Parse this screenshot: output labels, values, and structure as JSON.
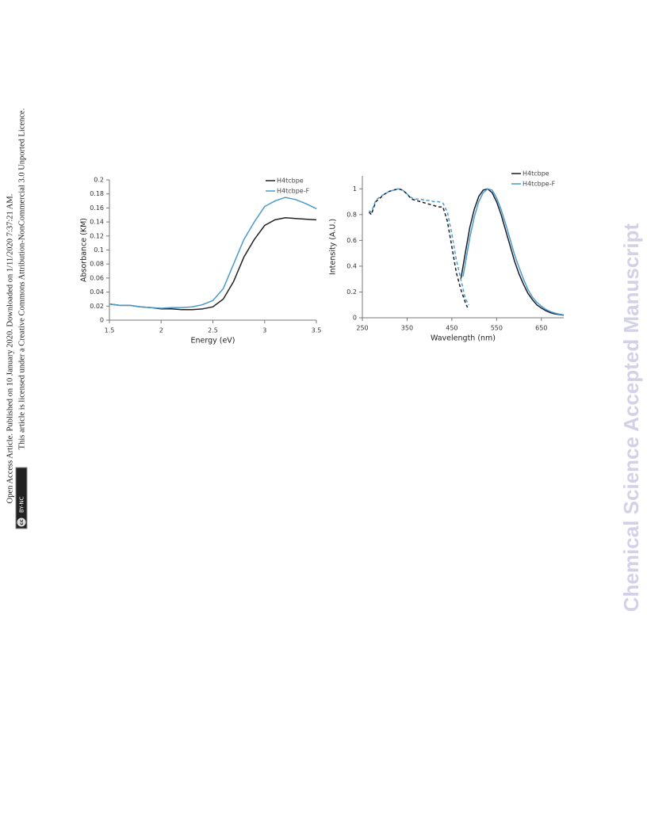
{
  "side_note": {
    "line1": "Open Access Article. Published on 10 January 2020. Downloaded on 1/11/2020 7:37:21 AM.",
    "line2": "This article is licensed under a Creative Commons Attribution-NonCommercial 3.0 Unported Licence.",
    "badge_icon": "cc",
    "badge_text": "BY-NC"
  },
  "watermark": "Chemical Science Accepted Manuscript",
  "chart_data": [
    {
      "type": "line",
      "xlabel": "Energy (eV)",
      "ylabel": "Absorbance (KM)",
      "xlim": [
        1.5,
        3.5
      ],
      "xticks": [
        1.5,
        2,
        2.5,
        3,
        3.5
      ],
      "ylim": [
        0,
        0.2
      ],
      "yticks": [
        0,
        0.02,
        0.04,
        0.06,
        0.08,
        0.1,
        0.12,
        0.14,
        0.16,
        0.18,
        0.2
      ],
      "legend": "upper right",
      "x": [
        1.5,
        1.6,
        1.7,
        1.8,
        1.9,
        2.0,
        2.1,
        2.2,
        2.3,
        2.4,
        2.5,
        2.6,
        2.7,
        2.8,
        2.9,
        3.0,
        3.1,
        3.2,
        3.3,
        3.4,
        3.5
      ],
      "series": [
        {
          "name": "H4tcbpe",
          "color": "#222222",
          "values": [
            0.023,
            0.021,
            0.021,
            0.019,
            0.018,
            0.016,
            0.016,
            0.015,
            0.015,
            0.016,
            0.019,
            0.03,
            0.055,
            0.09,
            0.115,
            0.135,
            0.143,
            0.146,
            0.145,
            0.144,
            0.143
          ]
        },
        {
          "name": "H4tcbpe-F",
          "color": "#4a9acb",
          "values": [
            0.023,
            0.021,
            0.021,
            0.019,
            0.018,
            0.017,
            0.018,
            0.018,
            0.019,
            0.022,
            0.028,
            0.045,
            0.08,
            0.115,
            0.14,
            0.162,
            0.17,
            0.175,
            0.172,
            0.166,
            0.159
          ]
        }
      ]
    },
    {
      "type": "spectra",
      "xlabel": "Wavelength (nm)",
      "ylabel": "Intensity (A.U.)",
      "xlim": [
        250,
        700
      ],
      "xticks": [
        250,
        350,
        450,
        550,
        650
      ],
      "ylim": [
        0,
        1.1
      ],
      "yticks": [
        0,
        0.2,
        0.4,
        0.6,
        0.8,
        1
      ],
      "legend": "upper right",
      "series": [
        {
          "name": "H4tcbpe",
          "color": "#1a1a2a",
          "excitation": {
            "x": [
              265,
              270,
              280,
              290,
              300,
              310,
              320,
              330,
              340,
              350,
              360,
              370,
              380,
              390,
              400,
              410,
              420,
              430,
              440,
              450,
              460,
              470,
              480,
              485
            ],
            "values": [
              0.82,
              0.8,
              0.9,
              0.93,
              0.96,
              0.98,
              0.99,
              1.0,
              0.99,
              0.96,
              0.92,
              0.91,
              0.9,
              0.89,
              0.88,
              0.87,
              0.86,
              0.86,
              0.75,
              0.55,
              0.35,
              0.22,
              0.12,
              0.08
            ]
          },
          "emission": {
            "x": [
              470,
              480,
              490,
              500,
              510,
              520,
              530,
              540,
              550,
              560,
              570,
              580,
              590,
              600,
              610,
              620,
              630,
              640,
              650,
              660,
              670,
              680,
              690,
              700
            ],
            "values": [
              0.3,
              0.5,
              0.7,
              0.84,
              0.94,
              0.99,
              1.0,
              0.97,
              0.9,
              0.8,
              0.68,
              0.56,
              0.44,
              0.34,
              0.26,
              0.19,
              0.14,
              0.1,
              0.075,
              0.055,
              0.04,
              0.03,
              0.025,
              0.02
            ]
          }
        },
        {
          "name": "H4tcbpe-F",
          "color": "#4a9acb",
          "excitation": {
            "x": [
              265,
              270,
              280,
              290,
              300,
              310,
              320,
              330,
              340,
              350,
              360,
              370,
              380,
              390,
              400,
              410,
              420,
              430,
              440,
              450,
              460,
              470,
              480,
              488
            ],
            "values": [
              0.83,
              0.82,
              0.91,
              0.94,
              0.96,
              0.98,
              0.99,
              1.0,
              0.99,
              0.96,
              0.93,
              0.92,
              0.92,
              0.91,
              0.91,
              0.9,
              0.9,
              0.89,
              0.82,
              0.65,
              0.45,
              0.3,
              0.15,
              0.1
            ]
          },
          "emission": {
            "x": [
              475,
              480,
              490,
              500,
              510,
              520,
              530,
              540,
              550,
              560,
              570,
              580,
              590,
              600,
              610,
              620,
              630,
              640,
              650,
              660,
              670,
              680,
              690,
              700
            ],
            "values": [
              0.32,
              0.42,
              0.62,
              0.78,
              0.9,
              0.97,
              1.0,
              0.99,
              0.93,
              0.84,
              0.73,
              0.61,
              0.49,
              0.39,
              0.3,
              0.22,
              0.16,
              0.12,
              0.09,
              0.065,
              0.048,
              0.036,
              0.028,
              0.022
            ]
          }
        }
      ]
    }
  ]
}
